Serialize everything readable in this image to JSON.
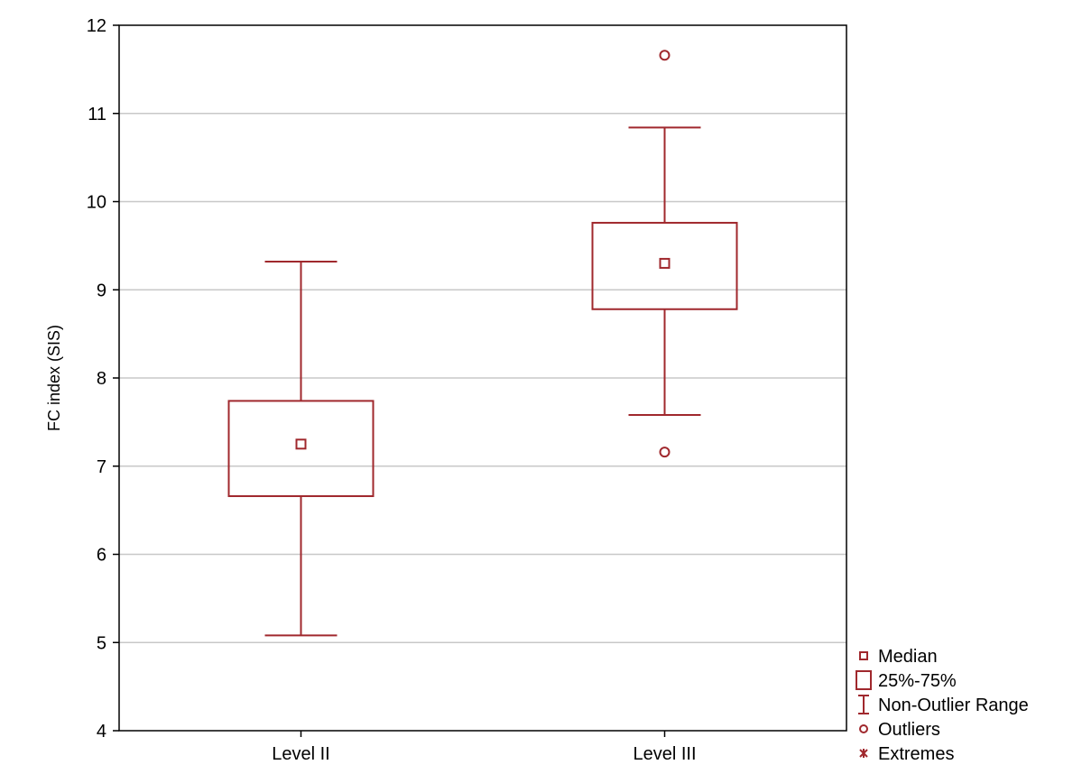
{
  "chart_data": {
    "type": "box",
    "ylabel": "FC index (SIS)",
    "ylim": [
      4,
      12
    ],
    "yticks": [
      4,
      5,
      6,
      7,
      8,
      9,
      10,
      11,
      12
    ],
    "grid": true,
    "categories": [
      "Level II",
      "Level III"
    ],
    "boxes": [
      {
        "category": "Level II",
        "whisker_low": 5.08,
        "q1": 6.66,
        "median": 7.25,
        "q3": 7.74,
        "whisker_high": 9.32,
        "outliers": []
      },
      {
        "category": "Level III",
        "whisker_low": 7.58,
        "q1": 8.78,
        "median": 9.3,
        "q3": 9.76,
        "whisker_high": 10.84,
        "outliers": [
          11.66,
          7.16
        ]
      }
    ],
    "legend_position": "right-bottom",
    "legend": [
      {
        "symbol": "median",
        "label": "Median"
      },
      {
        "symbol": "box",
        "label": "25%-75%"
      },
      {
        "symbol": "whisker",
        "label": "Non-Outlier Range"
      },
      {
        "symbol": "outlier",
        "label": "Outliers"
      },
      {
        "symbol": "extreme",
        "label": "Extremes"
      }
    ],
    "colors": {
      "series": "#a0282d",
      "grid": "#c8c8c8",
      "axis": "#000000"
    }
  }
}
